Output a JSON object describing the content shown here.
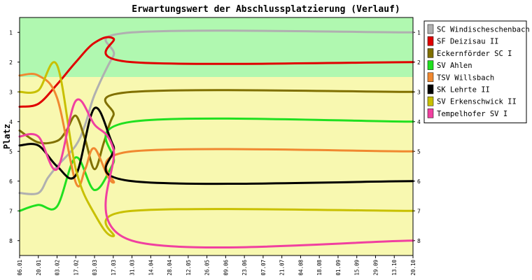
{
  "chart_data": {
    "type": "line",
    "title": "Erwartungswert der Abschlussplatzierung (Verlauf)",
    "ylabel": "Platz",
    "xlabel": "",
    "ylim": [
      8.5,
      0.5
    ],
    "y_ticks": [
      1,
      2,
      3,
      4,
      5,
      6,
      7,
      8
    ],
    "y_axis_inverted": true,
    "grid": false,
    "legend": "right",
    "categories": [
      "06.01",
      "20.01",
      "03.02",
      "17.02",
      "03.03",
      "17.03",
      "31.03",
      "14.04",
      "28.04",
      "12.05",
      "26.05",
      "09.06",
      "23.06",
      "07.07",
      "21.07",
      "04.08",
      "18.08",
      "01.09",
      "15.09",
      "29.09",
      "13.10",
      "20.10"
    ],
    "x": [
      0,
      0.5,
      1,
      1.5,
      2,
      2.5,
      3,
      3.5,
      4,
      4.5,
      5,
      5.5,
      6,
      6.5,
      7,
      7.5,
      8,
      8.5,
      9,
      9.5,
      10,
      10.5,
      11,
      11.5,
      12,
      12.5,
      13,
      13.5,
      14,
      14.5,
      15,
      15.5,
      16,
      16.5,
      17,
      17.5,
      18,
      18.5,
      19,
      19.5,
      20,
      21
    ],
    "background_bands": [
      {
        "from": 0.5,
        "to": 2.5,
        "color": "#b0f8b0"
      },
      {
        "from": 2.5,
        "to": 8.5,
        "color": "#f8f8b0"
      }
    ],
    "series": [
      {
        "name": "SC Windischeschenbach",
        "color": "#b0b0b0",
        "points": [
          [
            0,
            6.4
          ],
          [
            1,
            6.4
          ],
          [
            1.5,
            5.9
          ],
          [
            2,
            5.5
          ],
          [
            3,
            4.8
          ],
          [
            3.5,
            4.1
          ],
          [
            4,
            3.1
          ],
          [
            5,
            1.8
          ],
          [
            6,
            1.0
          ],
          [
            21,
            1.0
          ]
        ]
      },
      {
        "name": "SF Deizisau II",
        "color": "#e00000",
        "points": [
          [
            0,
            3.5
          ],
          [
            1,
            3.4
          ],
          [
            2,
            2.75
          ],
          [
            3,
            2.0
          ],
          [
            4,
            1.35
          ],
          [
            5,
            1.2
          ],
          [
            6,
            2.0
          ],
          [
            21,
            2.0
          ]
        ]
      },
      {
        "name": "Eckernförder SC I",
        "color": "#807000",
        "points": [
          [
            0,
            4.3
          ],
          [
            1,
            4.7
          ],
          [
            2,
            4.65
          ],
          [
            2.5,
            4.3
          ],
          [
            3,
            3.8
          ],
          [
            3.5,
            4.6
          ],
          [
            4,
            5.6
          ],
          [
            4.5,
            4.7
          ],
          [
            5,
            3.8
          ],
          [
            6,
            3.0
          ],
          [
            21,
            3.0
          ]
        ]
      },
      {
        "name": "SV Ahlen",
        "color": "#20e020",
        "points": [
          [
            0,
            7.0
          ],
          [
            1,
            6.8
          ],
          [
            2,
            6.85
          ],
          [
            3,
            5.2
          ],
          [
            4,
            6.3
          ],
          [
            5,
            5.4
          ],
          [
            6,
            4.0
          ],
          [
            21,
            4.0
          ]
        ]
      },
      {
        "name": "TSV Willsbach",
        "color": "#f08830",
        "points": [
          [
            0,
            2.45
          ],
          [
            1,
            2.45
          ],
          [
            2,
            3.2
          ],
          [
            3,
            6.05
          ],
          [
            3.5,
            5.6
          ],
          [
            4,
            4.9
          ],
          [
            5,
            6.05
          ],
          [
            6,
            5.0
          ],
          [
            21,
            5.0
          ]
        ]
      },
      {
        "name": "SK Lehrte II",
        "color": "#000000",
        "points": [
          [
            0,
            4.8
          ],
          [
            1,
            4.8
          ],
          [
            2,
            5.5
          ],
          [
            3,
            5.8
          ],
          [
            4,
            3.55
          ],
          [
            5,
            4.8
          ],
          [
            6,
            6.0
          ],
          [
            21,
            6.0
          ]
        ]
      },
      {
        "name": "SV Erkenschwick II",
        "color": "#c8c000",
        "points": [
          [
            0,
            3.0
          ],
          [
            1,
            2.95
          ],
          [
            2,
            2.1
          ],
          [
            3,
            5.6
          ],
          [
            4,
            7.1
          ],
          [
            5,
            7.85
          ],
          [
            6,
            7.0
          ],
          [
            21,
            7.0
          ]
        ]
      },
      {
        "name": "Tempelhofer SV I",
        "color": "#f040a0",
        "points": [
          [
            0,
            4.5
          ],
          [
            1,
            4.5
          ],
          [
            2,
            5.6
          ],
          [
            3,
            3.3
          ],
          [
            4,
            4.1
          ],
          [
            5,
            4.9
          ],
          [
            6,
            8.0
          ],
          [
            21,
            8.0
          ]
        ]
      }
    ]
  }
}
